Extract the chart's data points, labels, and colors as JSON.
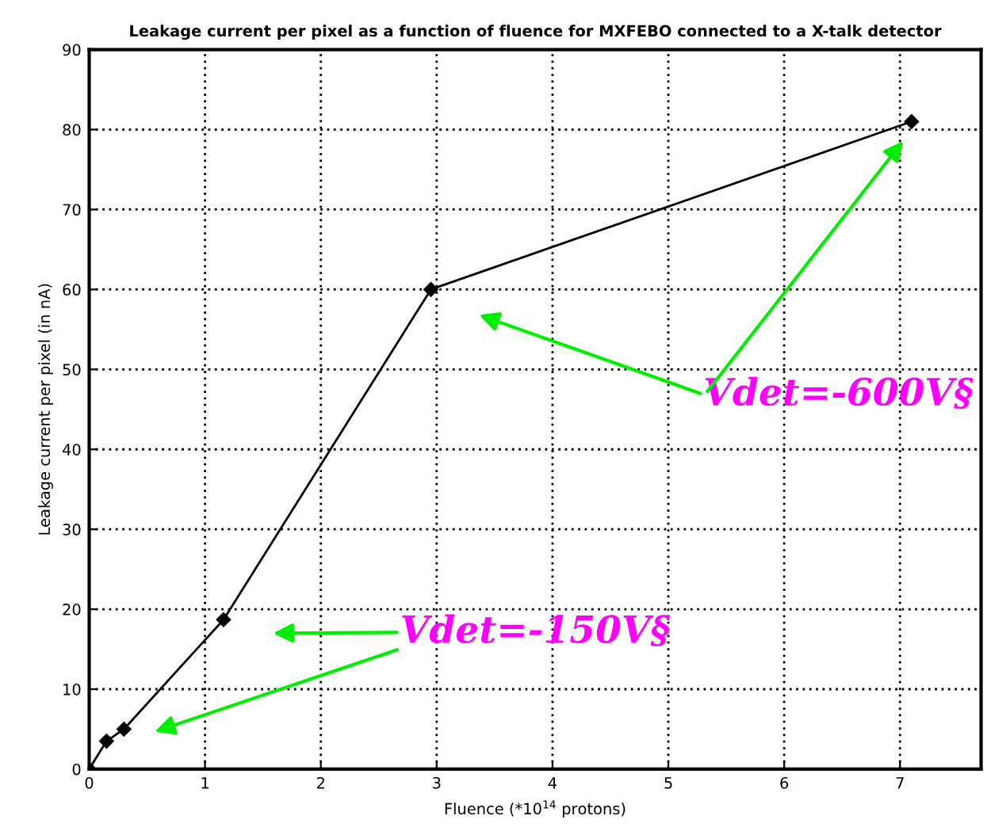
{
  "chart_data": {
    "type": "line",
    "title": "Leakage current per pixel as a function of fluence for MXFEBO connected to a X-talk detector",
    "xlabel": "Fluence (*10$^{14}$ protons)",
    "ylabel": "Leakage current per pixel (in nA)",
    "x": [
      0,
      0.15,
      0.3,
      1.16,
      2.95,
      7.1
    ],
    "series": [
      {
        "color": "#000000",
        "values": [
          0,
          3.5,
          5,
          18.7,
          60,
          81
        ]
      }
    ],
    "xlim": [
      0,
      7.7
    ],
    "xticks": [
      0,
      1,
      2,
      3,
      4,
      5,
      6,
      7
    ],
    "ylim": [
      0,
      90
    ],
    "yticks": [
      0,
      10,
      20,
      30,
      40,
      50,
      60,
      70,
      80,
      90
    ],
    "grid": true,
    "marker": "diamond",
    "line_style": "solid",
    "annotations": [
      "Vdet=-600V§",
      "Vdet=-150V§"
    ]
  }
}
